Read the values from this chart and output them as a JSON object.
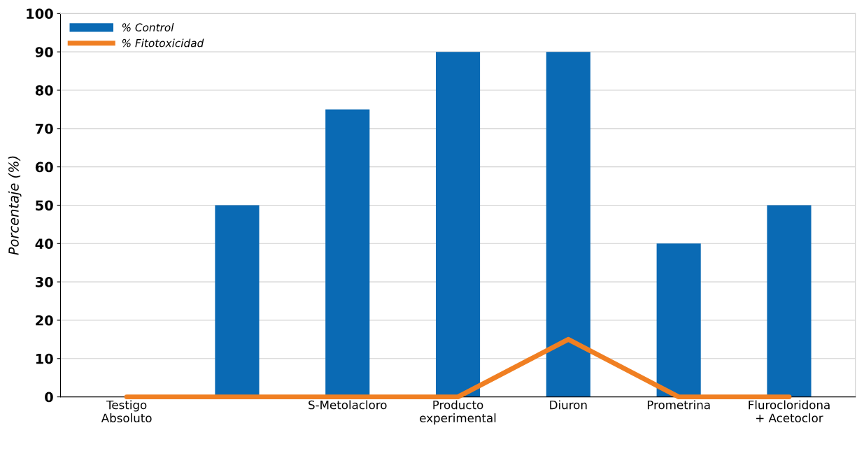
{
  "chart_data": {
    "type": "bar",
    "ylabel": "Porcentaje (%)",
    "categories": [
      "Testigo\nAbsoluto",
      null,
      "S-Metolacloro",
      "Producto\nexperimental",
      "Diuron",
      "Prometrina",
      "Flurocloridona\n+ Acetoclor"
    ],
    "series": [
      {
        "name": "% Control",
        "color": "#0a6ab4",
        "values": [
          0,
          50,
          75,
          90,
          90,
          40,
          50
        ]
      },
      {
        "name": "% Fitotoxicidad",
        "type": "line",
        "color": "#f07f22",
        "values": [
          0,
          0,
          0,
          0,
          15,
          0,
          0
        ]
      }
    ],
    "ylim": [
      0,
      100
    ],
    "yticks": [
      0,
      10,
      20,
      30,
      40,
      50,
      60,
      70,
      80,
      90,
      100
    ],
    "grid": "y",
    "legend": "top left",
    "marker": "none",
    "line_style": "solid"
  }
}
